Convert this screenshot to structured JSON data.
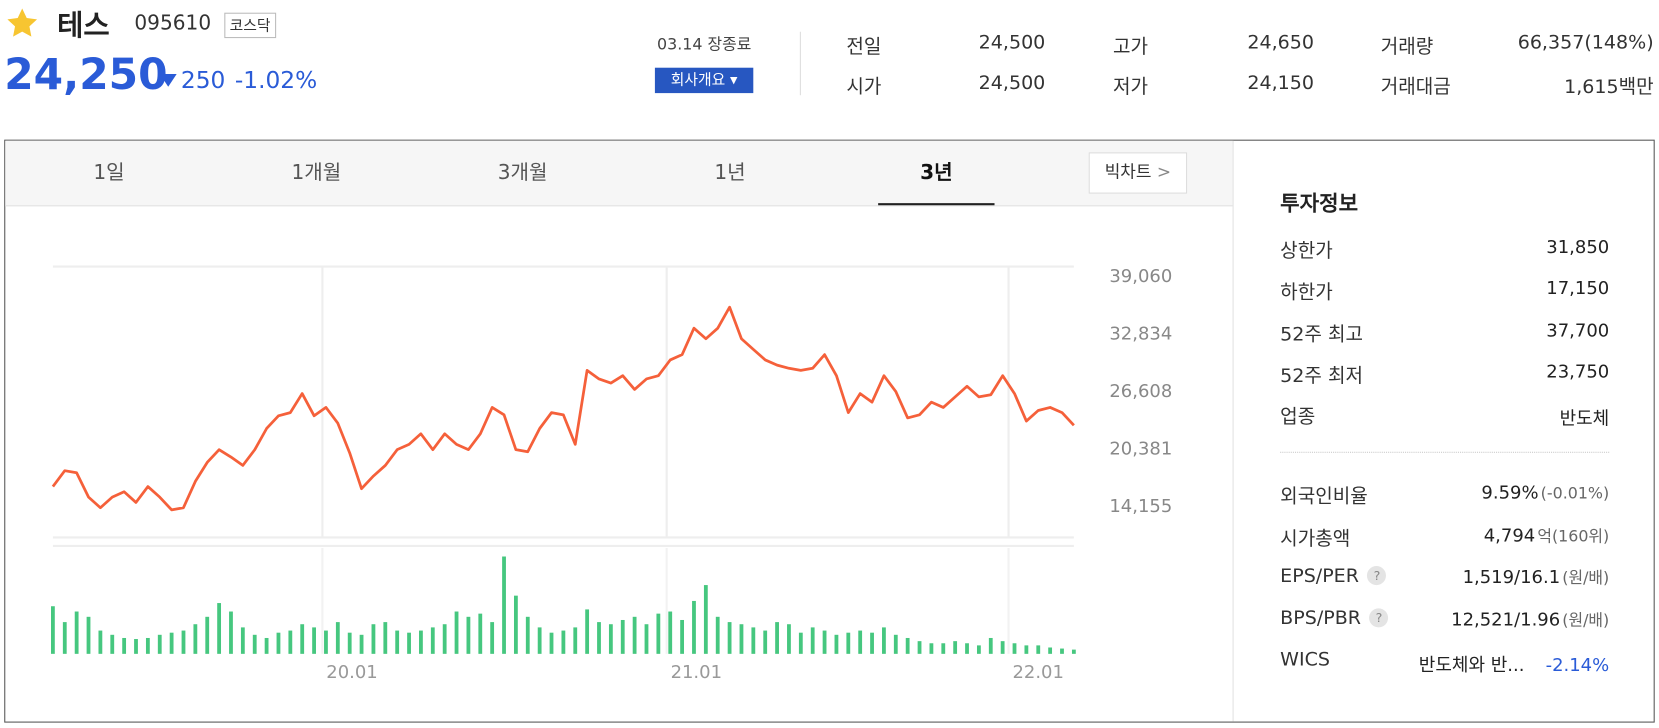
{
  "header": {
    "name": "테스",
    "code": "095610",
    "market": "코스닥",
    "price": "24,250",
    "change": "250",
    "change_rate": "-1.02%",
    "status": "03.14 장종료",
    "company_info": "회사개요"
  },
  "quotes": [
    {
      "label": "전일",
      "value": "24,500"
    },
    {
      "label": "시가",
      "value": "24,500"
    },
    {
      "label": "고가",
      "value": "24,650"
    },
    {
      "label": "저가",
      "value": "24,150"
    },
    {
      "label": "거래량",
      "value": "66,357(148%)"
    },
    {
      "label": "거래대금",
      "value": "1,615백만"
    }
  ],
  "tabs": [
    "1일",
    "1개월",
    "3개월",
    "1년",
    "3년"
  ],
  "selected_tab": 4,
  "big_chart": "빅차트",
  "chart_data": {
    "type": "line",
    "color": "#f5603a",
    "values": [
      16100,
      17820,
      17600,
      14960,
      13820,
      14960,
      15540,
      14390,
      16100,
      14960,
      13590,
      13820,
      16680,
      18730,
      20100,
      19300,
      18390,
      20100,
      22390,
      23760,
      24100,
      26160,
      23760,
      24670,
      22960,
      19760,
      15880,
      17250,
      18390,
      20100,
      20670,
      21820,
      20100,
      21820,
      20670,
      20100,
      21820,
      24670,
      23870,
      20100,
      19870,
      22390,
      24100,
      23870,
      20670,
      28670,
      27750,
      27300,
      28100,
      26610,
      27750,
      28100,
      29810,
      30380,
      33240,
      32100,
      33240,
      35520,
      32100,
      30950,
      29810,
      29240,
      28900,
      28670,
      28900,
      30380,
      28100,
      24100,
      26160,
      25240,
      28100,
      26380,
      23530,
      23870,
      25240,
      24670,
      25810,
      26950,
      25810,
      26040,
      28100,
      26160,
      23190,
      24330,
      24670,
      24100,
      22730
    ],
    "ylim": [
      10600,
      39900
    ],
    "yticks": [
      {
        "value": 39060,
        "label": "39,060"
      },
      {
        "value": 32834,
        "label": "32,834"
      },
      {
        "value": 26608,
        "label": "26,608"
      },
      {
        "value": 20381,
        "label": "20,381"
      },
      {
        "value": 14155,
        "label": "14,155"
      }
    ],
    "xlim": [
      0,
      86
    ],
    "xticks": [
      {
        "value": 22.7,
        "label": "20.01"
      },
      {
        "value": 51.7,
        "label": "21.01"
      },
      {
        "value": 80.5,
        "label": "22.01"
      }
    ],
    "volume": {
      "color": "#46c77f",
      "ylim": [
        0,
        100
      ],
      "values": [
        45,
        30,
        40,
        35,
        22,
        18,
        15,
        14,
        15,
        18,
        20,
        22,
        28,
        35,
        48,
        40,
        25,
        18,
        15,
        20,
        22,
        28,
        25,
        22,
        30,
        20,
        18,
        28,
        30,
        22,
        20,
        22,
        25,
        28,
        40,
        35,
        38,
        30,
        92,
        55,
        35,
        25,
        20,
        22,
        25,
        42,
        30,
        28,
        32,
        35,
        28,
        38,
        40,
        32,
        50,
        65,
        35,
        30,
        28,
        25,
        22,
        30,
        28,
        20,
        25,
        22,
        18,
        20,
        22,
        20,
        25,
        18,
        15,
        12,
        10,
        10,
        12,
        10,
        8,
        15,
        12,
        10,
        8,
        8,
        6,
        5,
        4
      ]
    }
  },
  "invest": {
    "title": "투자정보",
    "rows": [
      {
        "label": "상한가",
        "value": "31,850"
      },
      {
        "label": "하한가",
        "value": "17,150"
      },
      {
        "label": "52주 최고",
        "value": "37,700"
      },
      {
        "label": "52주 최저",
        "value": "23,750"
      },
      {
        "label": "업종",
        "value": "반도체"
      }
    ],
    "details": [
      {
        "label": "외국인비율",
        "value": "9.59%",
        "note": "(-0.01%)"
      },
      {
        "label": "시가총액",
        "value": "4,794",
        "note": "억(160위)"
      },
      {
        "label": "EPS/PER",
        "help": "?",
        "value": "1,519/16.1",
        "note": "(원/배)"
      },
      {
        "label": "BPS/PBR",
        "help": "?",
        "value": "12,521/1.96",
        "note": "(원/배)"
      },
      {
        "label": "WICS",
        "value": "반도체와 반...",
        "note": "-2.14%"
      }
    ]
  }
}
